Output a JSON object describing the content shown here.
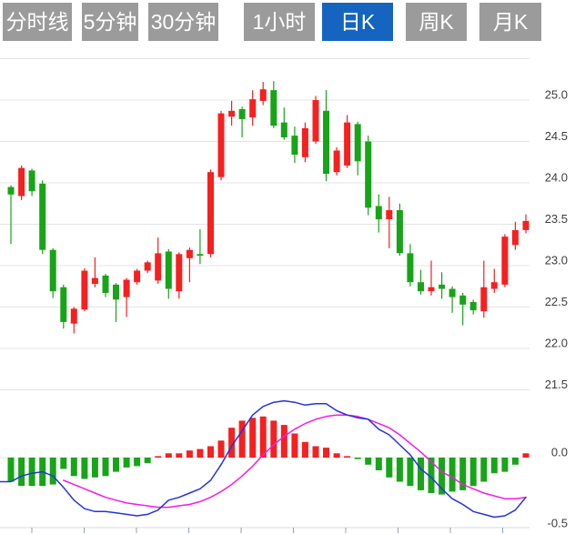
{
  "toolbar": {
    "tabs": [
      {
        "label": "分时线",
        "active": false
      },
      {
        "label": "5分钟",
        "active": false
      },
      {
        "label": "30分钟",
        "active": false
      },
      {
        "label": "1小时",
        "active": false
      },
      {
        "label": "日K",
        "active": true
      },
      {
        "label": "周K",
        "active": false
      },
      {
        "label": "月K",
        "active": false
      }
    ],
    "active_color": "#1565c0",
    "inactive_color": "#9b9b9b"
  },
  "chart_data": {
    "type": "candlestick",
    "subtype": "candlestick_with_macd",
    "selected_timeframe": "日K",
    "legend_position": "none",
    "grid": true,
    "price_axis": {
      "side": "right",
      "tick_labels": [
        "25.0",
        "24.5",
        "24.0",
        "23.5",
        "23.0",
        "22.5",
        "22.0",
        "21.5"
      ],
      "tick_values": [
        25.0,
        24.5,
        24.0,
        23.5,
        23.0,
        22.5,
        22.0,
        21.5
      ],
      "grid_top_value": 25.5,
      "range": [
        21.3,
        25.5
      ]
    },
    "colors": {
      "up": "#f52020",
      "down": "#18a418",
      "dif_line": "#2433e0",
      "dea_line": "#f51ae8",
      "gridline": "#e4e4e4",
      "axis_text": "#3d3d3d"
    },
    "candles_ohlc": [
      [
        23.95,
        23.97,
        23.26,
        23.86
      ],
      [
        23.84,
        24.21,
        23.79,
        24.18
      ],
      [
        24.15,
        24.17,
        23.84,
        23.9
      ],
      [
        23.99,
        24.03,
        23.14,
        23.19
      ],
      [
        23.19,
        23.21,
        22.61,
        22.69
      ],
      [
        22.74,
        22.77,
        22.24,
        22.32
      ],
      [
        22.3,
        22.5,
        22.18,
        22.48
      ],
      [
        22.47,
        22.97,
        22.45,
        22.94
      ],
      [
        22.78,
        23.1,
        22.74,
        22.85
      ],
      [
        22.88,
        22.9,
        22.62,
        22.67
      ],
      [
        22.77,
        22.79,
        22.32,
        22.59
      ],
      [
        22.62,
        22.85,
        22.38,
        22.83
      ],
      [
        22.8,
        22.96,
        22.77,
        22.94
      ],
      [
        22.94,
        23.06,
        22.91,
        23.04
      ],
      [
        22.82,
        23.34,
        22.78,
        23.15
      ],
      [
        23.17,
        23.2,
        22.6,
        22.72
      ],
      [
        22.69,
        23.16,
        22.6,
        23.14
      ],
      [
        23.09,
        23.22,
        22.8,
        23.19
      ],
      [
        23.14,
        23.44,
        23.02,
        23.12
      ],
      [
        23.14,
        24.16,
        23.1,
        24.13
      ],
      [
        24.07,
        24.87,
        24.03,
        24.84
      ],
      [
        24.8,
        24.99,
        24.69,
        24.87
      ],
      [
        24.89,
        24.92,
        24.55,
        24.77
      ],
      [
        24.79,
        25.12,
        24.69,
        25.01
      ],
      [
        24.99,
        25.22,
        24.94,
        25.13
      ],
      [
        25.12,
        25.23,
        24.66,
        24.69
      ],
      [
        24.73,
        24.91,
        24.52,
        24.55
      ],
      [
        24.57,
        24.68,
        24.24,
        24.34
      ],
      [
        24.31,
        24.73,
        24.25,
        24.66
      ],
      [
        24.5,
        25.05,
        24.47,
        25.0
      ],
      [
        24.87,
        25.12,
        24.02,
        24.11
      ],
      [
        24.13,
        24.43,
        24.09,
        24.39
      ],
      [
        24.21,
        24.82,
        24.18,
        24.73
      ],
      [
        24.71,
        24.74,
        24.09,
        24.26
      ],
      [
        24.5,
        24.57,
        23.61,
        23.7
      ],
      [
        23.72,
        23.86,
        23.4,
        23.56
      ],
      [
        23.56,
        23.83,
        23.21,
        23.67
      ],
      [
        23.67,
        23.75,
        23.12,
        23.15
      ],
      [
        23.15,
        23.26,
        22.75,
        22.8
      ],
      [
        22.8,
        22.95,
        22.65,
        22.69
      ],
      [
        22.69,
        23.06,
        22.64,
        22.74
      ],
      [
        22.77,
        22.92,
        22.6,
        22.72
      ],
      [
        22.72,
        22.75,
        22.43,
        22.62
      ],
      [
        22.64,
        22.67,
        22.28,
        22.53
      ],
      [
        22.56,
        22.59,
        22.41,
        22.46
      ],
      [
        22.45,
        23.06,
        22.37,
        22.74
      ],
      [
        22.72,
        22.96,
        22.67,
        22.8
      ],
      [
        22.77,
        23.38,
        22.74,
        23.35
      ],
      [
        23.25,
        23.53,
        23.19,
        23.43
      ],
      [
        23.43,
        23.62,
        23.39,
        23.54
      ]
    ],
    "macd": {
      "axis_tick_labels": [
        "0.0",
        "-0.5"
      ],
      "axis_tick_values": [
        0.0,
        -0.5
      ],
      "hist": [
        -0.17,
        -0.2,
        -0.2,
        -0.2,
        -0.19,
        -0.08,
        -0.13,
        -0.15,
        -0.14,
        -0.13,
        -0.1,
        -0.07,
        -0.06,
        -0.04,
        0.01,
        0.03,
        0.03,
        0.05,
        0.06,
        0.08,
        0.12,
        0.21,
        0.26,
        0.28,
        0.29,
        0.26,
        0.23,
        0.17,
        0.11,
        0.08,
        0.07,
        0.03,
        0.01,
        -0.01,
        -0.05,
        -0.09,
        -0.14,
        -0.17,
        -0.2,
        -0.23,
        -0.25,
        -0.26,
        -0.24,
        -0.23,
        -0.2,
        -0.17,
        -0.11,
        -0.1,
        -0.05,
        0.03
      ],
      "dif": [
        -0.17,
        -0.13,
        -0.11,
        -0.1,
        -0.13,
        -0.21,
        -0.3,
        -0.36,
        -0.38,
        -0.38,
        -0.39,
        -0.4,
        -0.41,
        -0.4,
        -0.37,
        -0.3,
        -0.28,
        -0.25,
        -0.22,
        -0.16,
        -0.05,
        0.08,
        0.19,
        0.3,
        0.36,
        0.39,
        0.4,
        0.39,
        0.37,
        0.38,
        0.38,
        0.33,
        0.3,
        0.28,
        0.27,
        0.2,
        0.16,
        0.09,
        0.02,
        -0.08,
        -0.14,
        -0.22,
        -0.29,
        -0.33,
        -0.38,
        -0.4,
        -0.42,
        -0.41,
        -0.37,
        -0.28
      ],
      "dea": [
        null,
        null,
        null,
        null,
        null,
        -0.16,
        -0.19,
        -0.22,
        -0.25,
        -0.28,
        -0.3,
        -0.32,
        -0.33,
        -0.34,
        -0.35,
        -0.35,
        -0.34,
        -0.33,
        -0.31,
        -0.28,
        -0.24,
        -0.19,
        -0.13,
        -0.06,
        0.02,
        0.09,
        0.15,
        0.2,
        0.24,
        0.27,
        0.29,
        0.3,
        0.3,
        0.29,
        0.27,
        0.24,
        0.21,
        0.16,
        0.1,
        0.04,
        -0.03,
        -0.1,
        -0.14,
        -0.19,
        -0.22,
        -0.25,
        -0.27,
        -0.29,
        -0.29,
        -0.28
      ]
    },
    "x_axis": {
      "tick_count": 10,
      "tick_labels": []
    }
  }
}
